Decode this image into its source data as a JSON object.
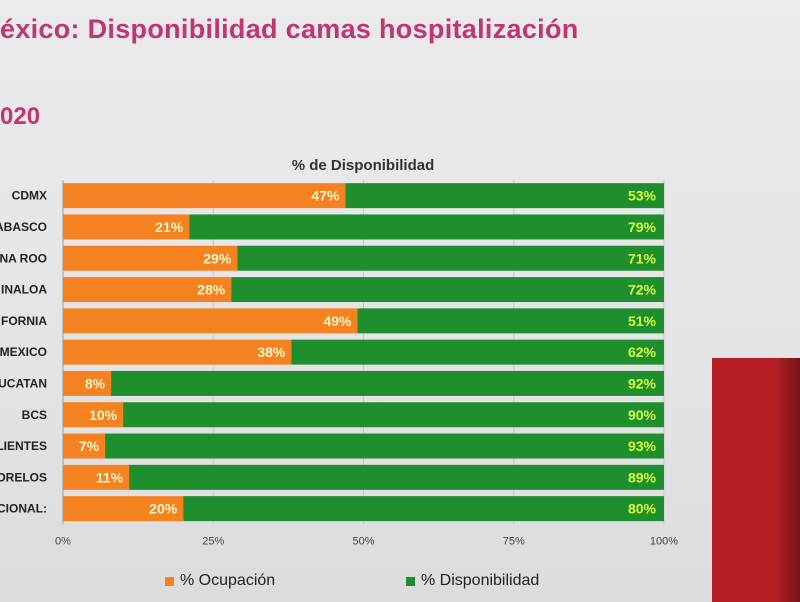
{
  "header": {
    "title": "éxico: Disponibilidad camas hospitalización",
    "subtitle": "020"
  },
  "colors": {
    "ocupacion": "#f58220",
    "disponibilidad": "#1f8f2e",
    "accent": "#c2356e",
    "panel": "#b51f24"
  },
  "chart_data": {
    "type": "bar",
    "orientation": "horizontal",
    "stacked": true,
    "title": "% de Disponibilidad",
    "categories": [
      "CDMX",
      "ABASCO",
      "NA ROO",
      "INALOA",
      "FORNIA",
      "MEXICO",
      "UCATAN",
      "BCS",
      "LIENTES",
      "ORELOS",
      "CIONAL:"
    ],
    "series": [
      {
        "name": "% Ocupación",
        "values": [
          47,
          21,
          29,
          28,
          49,
          38,
          8,
          10,
          7,
          11,
          20
        ],
        "labels": [
          "47%",
          "21%",
          "29%",
          "28%",
          "49%",
          "38%",
          "8%",
          "10%",
          "7%",
          "11%",
          "20%"
        ]
      },
      {
        "name": "% Disponibilidad",
        "values": [
          53,
          79,
          71,
          72,
          51,
          62,
          92,
          90,
          93,
          89,
          80
        ],
        "labels": [
          "53%",
          "79%",
          "71%",
          "72%",
          "51%",
          "62%",
          "92%",
          "90%",
          "93%",
          "89%",
          "80%"
        ]
      }
    ],
    "xlim": [
      0,
      100
    ],
    "xticks": [
      "0%",
      "25%",
      "50%",
      "75%",
      "100%"
    ],
    "xtick_values": [
      0,
      25,
      50,
      75,
      100
    ],
    "grid": true,
    "legend_position": "bottom"
  }
}
